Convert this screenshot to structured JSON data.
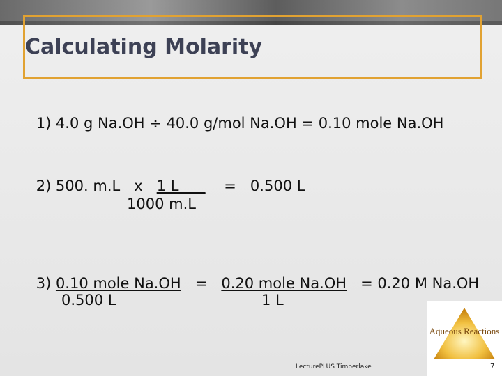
{
  "title": "Calculating Molarity",
  "steps": [
    {
      "parts": [
        {
          "text": "1) 4.0 g Na.OH ÷ 40.0 g/mol Na.OH = 0.10 mole Na.OH",
          "underline": false
        }
      ]
    },
    {
      "parts": [
        {
          "text": "2) 500. m.L   x   ",
          "underline": false
        },
        {
          "text": "1 L ___",
          "underline": true
        },
        {
          "text": "    =   0.500 L",
          "underline": false
        }
      ],
      "denominators": [
        "1000 m.L"
      ]
    },
    {
      "parts": [
        {
          "text": "3) ",
          "underline": false
        },
        {
          "text": "0.10 mole Na.OH",
          "underline": true
        },
        {
          "text": "   =   ",
          "underline": false
        },
        {
          "text": "0.20 mole Na.OH",
          "underline": true
        },
        {
          "text": "   = 0.20 M Na.OH",
          "underline": false
        }
      ],
      "denominators": [
        "0.500 L",
        "1 L"
      ]
    }
  ],
  "badge": "Aqueous Reactions",
  "footer": "LecturePLUS Timberlake",
  "page_number": "7"
}
